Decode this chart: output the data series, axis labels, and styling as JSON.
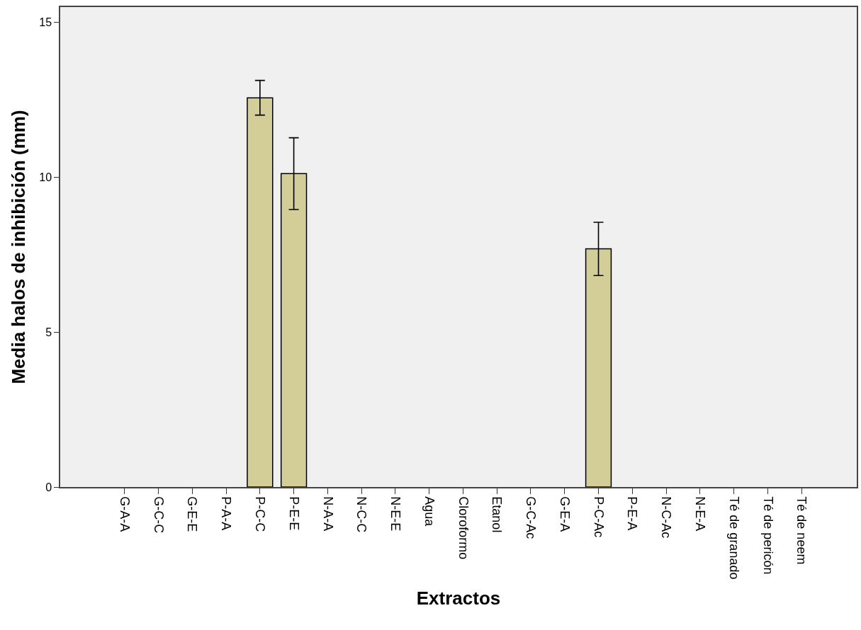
{
  "chart_data": {
    "type": "bar",
    "xlabel": "Extractos",
    "ylabel": "Media halos de inhibición (mm)",
    "categories": [
      "G-A-A",
      "G-C-C",
      "G-E-E",
      "P-A-A",
      "P-C-C",
      "P-E-E",
      "N-A-A",
      "N-C-C",
      "N-E-E",
      "Agua",
      "Cloroformo",
      "Etanol",
      "G-C-Ac",
      "G-E-A",
      "P-C-Ac",
      "P-E-A",
      "N-C-Ac",
      "N-E-A",
      "Té de granado",
      "Té de pericón",
      "Té de neem"
    ],
    "values": [
      null,
      null,
      null,
      null,
      12.57,
      10.12,
      null,
      null,
      null,
      null,
      null,
      null,
      null,
      null,
      7.69,
      null,
      null,
      null,
      null,
      null,
      null
    ],
    "errors": [
      null,
      null,
      null,
      null,
      0.56,
      1.16,
      null,
      null,
      null,
      null,
      null,
      null,
      null,
      null,
      0.86,
      null,
      null,
      null,
      null,
      null,
      null
    ],
    "color": "#d3ce98",
    "ylim": [
      0,
      15.5
    ],
    "yticks": [
      0,
      5,
      10,
      15
    ]
  }
}
